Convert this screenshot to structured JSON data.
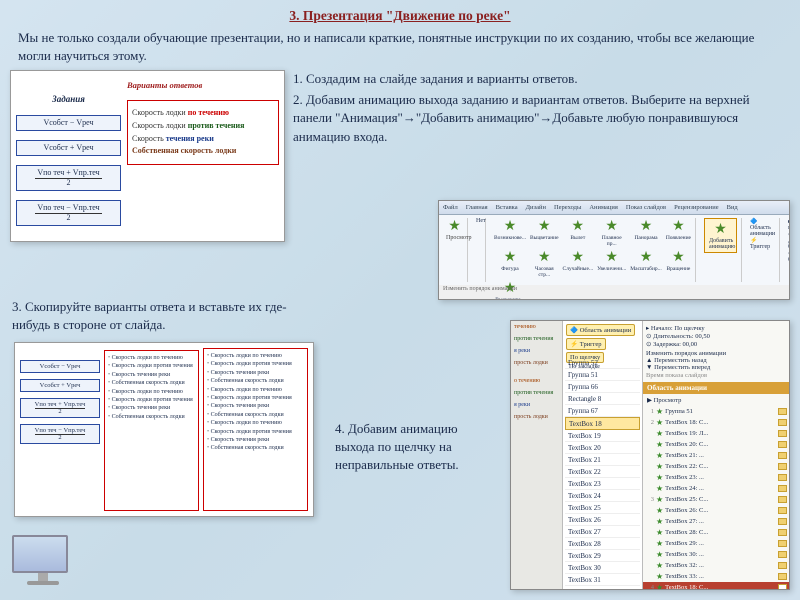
{
  "title": "3. Презентация \"Движение по реке\"",
  "intro": "Мы не только создали обучающие презентации, но и написали краткие, понятные инструкции по их созданию, чтобы все желающие могли научиться этому.",
  "steps": {
    "s1": "1. Создадим на слайде задания и варианты ответов.",
    "s2": "2. Добавим анимацию выхода заданию и вариантам ответов. Выберите на верхней панели \"Анимация\"→\"Добавить анимацию\"→Добавьте любую понравившуюся анимацию входа.",
    "s3": "3. Скопируйте варианты ответа и вставьте их где-нибудь в стороне от слайда.",
    "s4": "4. Добавим анимацию выхода по щелчку на неправильные ответы."
  },
  "slide1": {
    "header_tasks": "Задания",
    "header_answers": "Варианты ответов",
    "formulas": [
      "Vсобст − Vреч",
      "Vсобст + Vреч",
      "Vпо теч + Vпр.теч",
      "Vпо теч − Vпр.теч"
    ],
    "frac_denom": "2",
    "lines": [
      {
        "pre": "Скорость лодки ",
        "hl": "по течению",
        "cls": "w1"
      },
      {
        "pre": "Скорость лодки ",
        "hl": "против течения",
        "cls": "w2"
      },
      {
        "pre": "Скорость ",
        "hl": "течения реки",
        "cls": "w3"
      },
      {
        "pre": "",
        "hl": "Собственная скорость лодки",
        "cls": "w4"
      }
    ]
  },
  "ribbon": {
    "tabs": [
      "Файл",
      "Главная",
      "Вставка",
      "Дизайн",
      "Переходы",
      "Анимация",
      "Показ слайдов",
      "Рецензирование",
      "Вид"
    ],
    "add_btn": "Добавить анимацию",
    "area_btn": "Область анимации",
    "trigger": "Триггер",
    "effects": [
      "Возникнове...",
      "Выцветание",
      "Вылет",
      "Плавное пр...",
      "Панорама",
      "Появление",
      "Фигура",
      "Часовая стр...",
      "Случайные...",
      "Увеличени...",
      "Масштабир...",
      "Вращение",
      "Выскакива..."
    ],
    "start_lbl": "Начало:",
    "start_val": "По щелчку",
    "dur_lbl": "Длительность:",
    "dur_val": "00,50",
    "delay_lbl": "Задержка:",
    "delay_val": "00,00",
    "order_lbl": "Изменить порядок анимации",
    "group_lbl": "Группа 1"
  },
  "sc4": {
    "area_anim": "Область анимации",
    "trigger": "Триггер",
    "po_schelchku": "По щелчку",
    "po_zakladke": "По закладке",
    "nachalo": "Начало:",
    "dlit": "Длительность:",
    "dlit_val": "00,50",
    "zad": "Задержка:",
    "zad_val": "00,00",
    "reorder": "Изменить порядок анимации",
    "back": "Переместить назад",
    "fwd": "Переместить вперед",
    "time_title": "Время показа слайдов",
    "pane_title": "Область анимации",
    "play": "Просмотр",
    "mid_items": [
      "Группа 52",
      "Группа 51",
      "Группа 66",
      "Rectangle 8",
      "Группа 67",
      "TextBox 18",
      "TextBox 19",
      "TextBox 20",
      "TextBox 21",
      "TextBox 22",
      "TextBox 23",
      "TextBox 24",
      "TextBox 25",
      "TextBox 26",
      "TextBox 27",
      "TextBox 28",
      "TextBox 29",
      "TextBox 30",
      "TextBox 31",
      "TextBox 32",
      "TextBox 33"
    ],
    "mid_selected_index": 5,
    "anim_rows": [
      {
        "n": "1",
        "label": "Группа 51"
      },
      {
        "n": "2",
        "label": "TextBox 18: С..."
      },
      {
        "n": "",
        "label": "TextBox 19: Л..."
      },
      {
        "n": "",
        "label": "TextBox 20: С..."
      },
      {
        "n": "",
        "label": "TextBox 21: ..."
      },
      {
        "n": "",
        "label": "TextBox 22: С..."
      },
      {
        "n": "",
        "label": "TextBox 23: ..."
      },
      {
        "n": "",
        "label": "TextBox 24: ..."
      },
      {
        "n": "3",
        "label": "TextBox 25: С..."
      },
      {
        "n": "",
        "label": "TextBox 26: С..."
      },
      {
        "n": "",
        "label": "TextBox 27: ..."
      },
      {
        "n": "",
        "label": "TextBox 28: С..."
      },
      {
        "n": "",
        "label": "TextBox 29: ..."
      },
      {
        "n": "",
        "label": "TextBox 30: ..."
      },
      {
        "n": "",
        "label": "TextBox 32: ..."
      },
      {
        "n": "",
        "label": "TextBox 33: ..."
      },
      {
        "n": "4",
        "label": "TextBox 18: С...",
        "sel": true
      }
    ]
  },
  "colors": {
    "title": "#8a2020",
    "formula_border": "#2a4aa0",
    "red_border": "#c00000"
  }
}
